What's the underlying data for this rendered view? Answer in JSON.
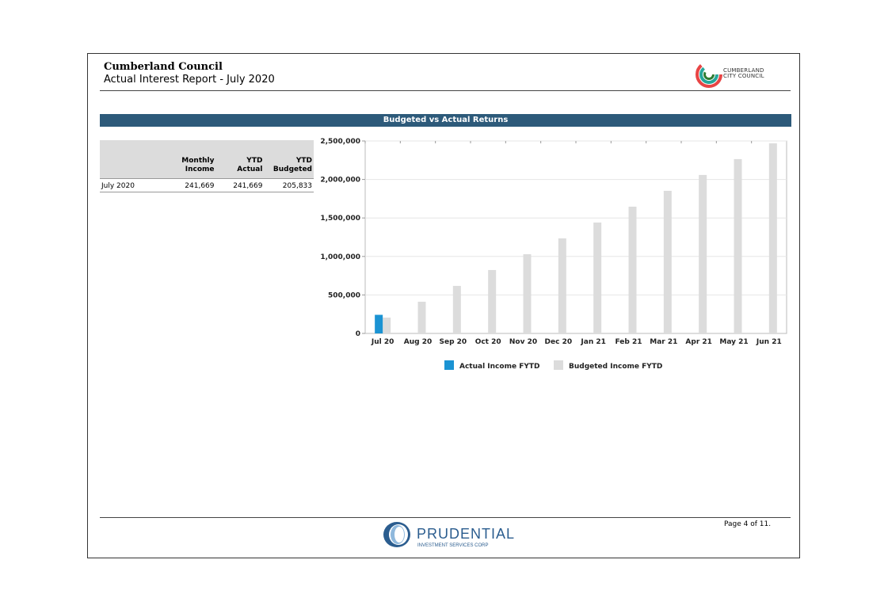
{
  "header": {
    "organisation": "Cumberland Council",
    "report_title": "Actual Interest Report - July 2020",
    "logo_text_line1": "CUMBERLAND",
    "logo_text_line2": "CITY COUNCIL"
  },
  "section_title": "Budgeted vs Actual Returns",
  "table": {
    "columns": [
      "",
      "Monthly Income",
      "YTD Actual",
      "YTD Budgeted"
    ],
    "column_lines": [
      [
        "",
        ""
      ],
      [
        "Monthly",
        "Income"
      ],
      [
        "YTD",
        "Actual"
      ],
      [
        "YTD",
        "Budgeted"
      ]
    ],
    "rows": [
      [
        "July 2020",
        "241,669",
        "241,669",
        "205,833"
      ]
    ]
  },
  "chart_data": {
    "type": "bar",
    "title": "",
    "xlabel": "",
    "ylabel": "",
    "categories": [
      "Jul 20",
      "Aug 20",
      "Sep 20",
      "Oct 20",
      "Nov 20",
      "Dec 20",
      "Jan 21",
      "Feb 21",
      "Mar 21",
      "Apr 21",
      "May 21",
      "Jun 21"
    ],
    "series": [
      {
        "name": "Actual Income FYTD",
        "color": "#1b93d3",
        "values": [
          241669,
          null,
          null,
          null,
          null,
          null,
          null,
          null,
          null,
          null,
          null,
          null
        ]
      },
      {
        "name": "Budgeted Income FYTD",
        "color": "#dcdcdc",
        "values": [
          205833,
          411667,
          617500,
          823333,
          1029167,
          1235000,
          1440833,
          1646667,
          1852500,
          2058333,
          2264167,
          2470000
        ]
      }
    ],
    "ylim": [
      0,
      2500000
    ],
    "yticks": [
      0,
      500000,
      1000000,
      1500000,
      2000000,
      2500000
    ],
    "ytick_labels": [
      "0",
      "500,000",
      "1,000,000",
      "1,500,000",
      "2,000,000",
      "2,500,000"
    ],
    "grid": true,
    "legend_position": "bottom-center"
  },
  "footer": {
    "brand": "PRUDENTIAL",
    "brand_sub": "INVESTMENT SERVICES CORP",
    "page_label": "Page 4 of 11."
  }
}
